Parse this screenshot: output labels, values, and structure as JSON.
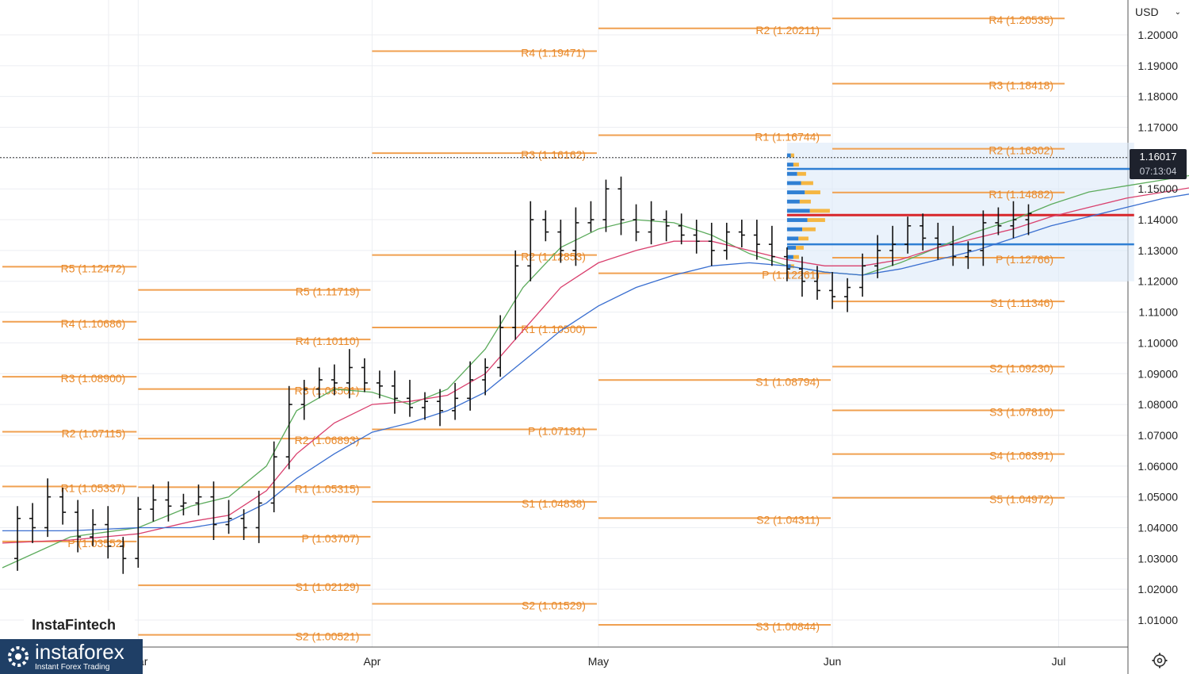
{
  "header": {
    "currency": "USD",
    "currency_dropdown_icon": "chevron-down-icon"
  },
  "price_tag": {
    "price": "1.16017",
    "countdown": "07:13:04"
  },
  "branding": {
    "watermark": "InstaFintech",
    "logo_name": "instaforex",
    "logo_tagline": "Instant Forex Trading"
  },
  "icons": {
    "settings": "gear-icon",
    "logo": "instaforex-logo-icon"
  },
  "colors": {
    "pivot": "#f0a050",
    "pivot_label": "#e8892a",
    "ma_fast": "#5cab5c",
    "ma_mid": "#d9406e",
    "ma_slow": "#3a6fd0",
    "candle": "#111111",
    "vp_zone": "#dceaf8",
    "vp_bar_blue": "#2f7fd3",
    "vp_bar_orange": "#f5b642",
    "poc": "#d8262b"
  },
  "chart_data": {
    "type": "ohlc",
    "instrument_currency": "USD",
    "y_ticks": [
      "1.01000",
      "1.02000",
      "1.03000",
      "1.04000",
      "1.05000",
      "1.06000",
      "1.07000",
      "1.08000",
      "1.09000",
      "1.10000",
      "1.11000",
      "1.12000",
      "1.13000",
      "1.14000",
      "1.15000",
      "1.16000",
      "1.17000",
      "1.18000",
      "1.19000",
      "1.20000"
    ],
    "ylim": [
      1.0,
      1.204
    ],
    "x_ticks": [
      {
        "label": "Mar",
        "day": 59
      },
      {
        "label": "Apr",
        "day": 90
      },
      {
        "label": "May",
        "day": 120
      },
      {
        "label": "Jun",
        "day": 151
      },
      {
        "label": "Jul",
        "day": 181
      }
    ],
    "xlim_day": [
      41,
      191
    ],
    "current_price": 1.16017,
    "pivot_months": [
      {
        "start": 41,
        "end": 59,
        "levels": [
          {
            "name": "R5",
            "value": 1.12472,
            "label": "R5 (1.12472)",
            "lx": 0
          },
          {
            "name": "R4",
            "value": 1.10686,
            "label": "R4 (1.10686)",
            "lx": 0
          },
          {
            "name": "R3",
            "value": 1.089,
            "label": "R3 (1.08900)",
            "lx": 0
          },
          {
            "name": "R2",
            "value": 1.07115,
            "label": "R2 (1.07115)",
            "lx": 0
          },
          {
            "name": "R1",
            "value": 1.05337,
            "label": "R1 (1.05337)",
            "lx": 0
          },
          {
            "name": "P",
            "value": 1.03552,
            "label": "P (1.03552)",
            "lx": 0
          }
        ]
      },
      {
        "start": 59,
        "end": 90,
        "levels": [
          {
            "name": "R5",
            "value": 1.11719,
            "label": "R5 (1.11719)"
          },
          {
            "name": "R4",
            "value": 1.1011,
            "label": "R4 (1.10110)"
          },
          {
            "name": "R3",
            "value": 1.08501,
            "label": "R3 (1.08501)"
          },
          {
            "name": "R2",
            "value": 1.06893,
            "label": "R2 (1.06893)"
          },
          {
            "name": "R1",
            "value": 1.05315,
            "label": "R1 (1.05315)"
          },
          {
            "name": "P",
            "value": 1.03707,
            "label": "P (1.03707)"
          },
          {
            "name": "S1",
            "value": 1.02129,
            "label": "S1 (1.02129)"
          },
          {
            "name": "S2",
            "value": 1.00521,
            "label": "S2 (1.00521)"
          }
        ]
      },
      {
        "start": 90,
        "end": 120,
        "levels": [
          {
            "name": "R4",
            "value": 1.19471,
            "label": "R4 (1.19471)"
          },
          {
            "name": "R3",
            "value": 1.16162,
            "label": "R3 (1.16162)"
          },
          {
            "name": "R2",
            "value": 1.12853,
            "label": "R2 (1.12853)"
          },
          {
            "name": "R1",
            "value": 1.105,
            "label": "R1 (1.10500)"
          },
          {
            "name": "P",
            "value": 1.07191,
            "label": "P (1.07191)"
          },
          {
            "name": "S1",
            "value": 1.04838,
            "label": "S1 (1.04838)"
          },
          {
            "name": "S2",
            "value": 1.01529,
            "label": "S2 (1.01529)"
          }
        ]
      },
      {
        "start": 120,
        "end": 151,
        "levels": [
          {
            "name": "R2",
            "value": 1.20211,
            "label": "R2 (1.20211)"
          },
          {
            "name": "R1",
            "value": 1.16744,
            "label": "R1 (1.16744)"
          },
          {
            "name": "P",
            "value": 1.12261,
            "label": "P (1.12261)"
          },
          {
            "name": "S1",
            "value": 1.08794,
            "label": "S1 (1.08794)"
          },
          {
            "name": "S2",
            "value": 1.04311,
            "label": "S2 (1.04311)"
          },
          {
            "name": "S3",
            "value": 1.00844,
            "label": "S3 (1.00844)"
          }
        ]
      },
      {
        "start": 151,
        "end": 182,
        "levels": [
          {
            "name": "R4",
            "value": 1.20535,
            "label": "R4 (1.20535)"
          },
          {
            "name": "R3",
            "value": 1.18418,
            "label": "R3 (1.18418)"
          },
          {
            "name": "R2",
            "value": 1.16302,
            "label": "R2 (1.16302)"
          },
          {
            "name": "R1",
            "value": 1.14882,
            "label": "R1 (1.14882)"
          },
          {
            "name": "P",
            "value": 1.12766,
            "label": "P (1.12766)"
          },
          {
            "name": "S1",
            "value": 1.11346,
            "label": "S1 (1.11346)"
          },
          {
            "name": "S2",
            "value": 1.0923,
            "label": "S2 (1.09230)"
          },
          {
            "name": "S3",
            "value": 1.0781,
            "label": "S3 (1.07810)"
          },
          {
            "name": "S4",
            "value": 1.06391,
            "label": "S4 (1.06391)"
          },
          {
            "name": "S5",
            "value": 1.04972,
            "label": "S5 (1.04972)"
          }
        ]
      }
    ],
    "close_path": [
      [
        41,
        1.03
      ],
      [
        43,
        1.043
      ],
      [
        45,
        1.04
      ],
      [
        47,
        1.05
      ],
      [
        49,
        1.045
      ],
      [
        51,
        1.037
      ],
      [
        53,
        1.041
      ],
      [
        55,
        1.034
      ],
      [
        57,
        1.03
      ],
      [
        59,
        1.046
      ],
      [
        61,
        1.049
      ],
      [
        63,
        1.047
      ],
      [
        65,
        1.048
      ],
      [
        67,
        1.05
      ],
      [
        69,
        1.041
      ],
      [
        71,
        1.043
      ],
      [
        73,
        1.04
      ],
      [
        75,
        1.048
      ],
      [
        77,
        1.063
      ],
      [
        79,
        1.08
      ],
      [
        81,
        1.085
      ],
      [
        83,
        1.088
      ],
      [
        85,
        1.087
      ],
      [
        87,
        1.092
      ],
      [
        89,
        1.087
      ],
      [
        91,
        1.086
      ],
      [
        93,
        1.082
      ],
      [
        95,
        1.079
      ],
      [
        97,
        1.081
      ],
      [
        99,
        1.078
      ],
      [
        101,
        1.082
      ],
      [
        103,
        1.088
      ],
      [
        105,
        1.092
      ],
      [
        107,
        1.105
      ],
      [
        109,
        1.125
      ],
      [
        111,
        1.14
      ],
      [
        113,
        1.136
      ],
      [
        115,
        1.13
      ],
      [
        117,
        1.139
      ],
      [
        119,
        1.14
      ],
      [
        121,
        1.15
      ],
      [
        123,
        1.14
      ],
      [
        125,
        1.136
      ],
      [
        127,
        1.14
      ],
      [
        129,
        1.138
      ],
      [
        131,
        1.135
      ],
      [
        133,
        1.133
      ],
      [
        135,
        1.13
      ],
      [
        137,
        1.136
      ],
      [
        139,
        1.135
      ],
      [
        141,
        1.132
      ],
      [
        143,
        1.128
      ],
      [
        145,
        1.124
      ],
      [
        147,
        1.12
      ],
      [
        149,
        1.117
      ],
      [
        151,
        1.115
      ],
      [
        153,
        1.118
      ],
      [
        155,
        1.125
      ],
      [
        157,
        1.13
      ],
      [
        159,
        1.132
      ],
      [
        161,
        1.138
      ],
      [
        163,
        1.134
      ],
      [
        165,
        1.132
      ],
      [
        167,
        1.128
      ],
      [
        169,
        1.13
      ],
      [
        171,
        1.139
      ],
      [
        173,
        1.138
      ],
      [
        175,
        1.14
      ],
      [
        177,
        1.142
      ],
      [
        179,
        1.145
      ],
      [
        181,
        1.148
      ],
      [
        183,
        1.15
      ],
      [
        185,
        1.154
      ],
      [
        187,
        1.152
      ],
      [
        189,
        1.158
      ],
      [
        191,
        1.155
      ],
      [
        193,
        1.16
      ],
      [
        195,
        1.157
      ],
      [
        197,
        1.155
      ],
      [
        199,
        1.15
      ],
      [
        201,
        1.148
      ],
      [
        203,
        1.15
      ],
      [
        205,
        1.155
      ],
      [
        207,
        1.16
      ]
    ],
    "moving_averages": [
      {
        "role": "fast",
        "points": [
          [
            41,
            1.027
          ],
          [
            50,
            1.037
          ],
          [
            59,
            1.04
          ],
          [
            66,
            1.047
          ],
          [
            71,
            1.05
          ],
          [
            76,
            1.06
          ],
          [
            80,
            1.078
          ],
          [
            85,
            1.085
          ],
          [
            90,
            1.084
          ],
          [
            95,
            1.08
          ],
          [
            100,
            1.085
          ],
          [
            105,
            1.098
          ],
          [
            110,
            1.118
          ],
          [
            115,
            1.131
          ],
          [
            120,
            1.137
          ],
          [
            125,
            1.14
          ],
          [
            130,
            1.139
          ],
          [
            135,
            1.135
          ],
          [
            140,
            1.129
          ],
          [
            145,
            1.125
          ],
          [
            150,
            1.123
          ],
          [
            155,
            1.122
          ],
          [
            160,
            1.126
          ],
          [
            165,
            1.131
          ],
          [
            170,
            1.136
          ],
          [
            175,
            1.14
          ],
          [
            180,
            1.145
          ],
          [
            185,
            1.149
          ],
          [
            190,
            1.151
          ],
          [
            195,
            1.153
          ],
          [
            200,
            1.155
          ],
          [
            205,
            1.158
          ],
          [
            210,
            1.16
          ]
        ]
      },
      {
        "role": "mid",
        "points": [
          [
            41,
            1.035
          ],
          [
            50,
            1.036
          ],
          [
            59,
            1.038
          ],
          [
            66,
            1.042
          ],
          [
            71,
            1.044
          ],
          [
            76,
            1.052
          ],
          [
            80,
            1.064
          ],
          [
            85,
            1.074
          ],
          [
            90,
            1.08
          ],
          [
            95,
            1.081
          ],
          [
            100,
            1.083
          ],
          [
            105,
            1.09
          ],
          [
            110,
            1.104
          ],
          [
            115,
            1.118
          ],
          [
            120,
            1.126
          ],
          [
            125,
            1.13
          ],
          [
            130,
            1.133
          ],
          [
            135,
            1.133
          ],
          [
            140,
            1.13
          ],
          [
            145,
            1.127
          ],
          [
            150,
            1.125
          ],
          [
            155,
            1.125
          ],
          [
            160,
            1.127
          ],
          [
            165,
            1.131
          ],
          [
            170,
            1.134
          ],
          [
            175,
            1.137
          ],
          [
            180,
            1.141
          ],
          [
            185,
            1.144
          ],
          [
            190,
            1.147
          ],
          [
            195,
            1.149
          ],
          [
            200,
            1.151
          ],
          [
            205,
            1.153
          ],
          [
            210,
            1.155
          ]
        ]
      },
      {
        "role": "slow",
        "points": [
          [
            41,
            1.039
          ],
          [
            50,
            1.039
          ],
          [
            59,
            1.04
          ],
          [
            66,
            1.04
          ],
          [
            71,
            1.042
          ],
          [
            76,
            1.048
          ],
          [
            80,
            1.056
          ],
          [
            85,
            1.064
          ],
          [
            90,
            1.071
          ],
          [
            95,
            1.074
          ],
          [
            100,
            1.078
          ],
          [
            105,
            1.084
          ],
          [
            110,
            1.094
          ],
          [
            115,
            1.104
          ],
          [
            120,
            1.112
          ],
          [
            125,
            1.118
          ],
          [
            130,
            1.122
          ],
          [
            135,
            1.125
          ],
          [
            140,
            1.126
          ],
          [
            145,
            1.125
          ],
          [
            150,
            1.123
          ],
          [
            155,
            1.122
          ],
          [
            160,
            1.124
          ],
          [
            165,
            1.127
          ],
          [
            170,
            1.13
          ],
          [
            175,
            1.134
          ],
          [
            180,
            1.138
          ],
          [
            185,
            1.141
          ],
          [
            190,
            1.144
          ],
          [
            195,
            1.147
          ],
          [
            200,
            1.149
          ],
          [
            205,
            1.151
          ],
          [
            210,
            1.153
          ]
        ]
      }
    ],
    "volume_profile": {
      "start_day": 145,
      "end_day": 191,
      "price_low": 1.12,
      "price_high": 1.165,
      "poc": 1.1415,
      "vah": 1.1565,
      "val": 1.132,
      "rows": [
        [
          1.16,
          3
        ],
        [
          1.157,
          5
        ],
        [
          1.154,
          8
        ],
        [
          1.151,
          11
        ],
        [
          1.148,
          14
        ],
        [
          1.145,
          10
        ],
        [
          1.142,
          18
        ],
        [
          1.139,
          16
        ],
        [
          1.136,
          12
        ],
        [
          1.133,
          9
        ],
        [
          1.13,
          7
        ],
        [
          1.127,
          5
        ],
        [
          1.124,
          3
        ]
      ]
    }
  }
}
